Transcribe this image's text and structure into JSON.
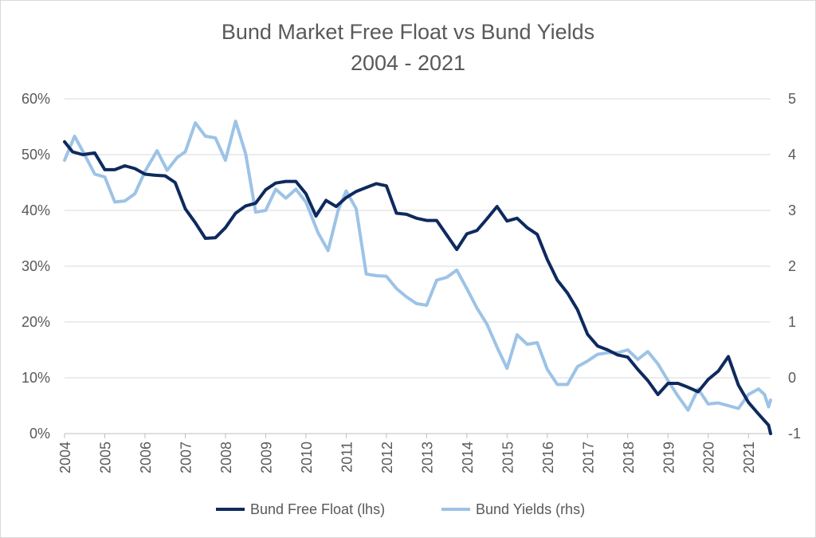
{
  "chart_data": {
    "type": "line",
    "title": "Bund Market Free Float vs Bund Yields",
    "subtitle": "2004 - 2021",
    "x_tick_labels": [
      "2004",
      "2005",
      "2006",
      "2007",
      "2008",
      "2009",
      "2010",
      "2011",
      "2012",
      "2013",
      "2014",
      "2015",
      "2016",
      "2017",
      "2018",
      "2019",
      "2020",
      "2021"
    ],
    "y_left": {
      "range": [
        0,
        60
      ],
      "ticks": [
        "0%",
        "10%",
        "20%",
        "30%",
        "40%",
        "50%",
        "60%"
      ],
      "tick_values": [
        0,
        10,
        20,
        30,
        40,
        50,
        60
      ]
    },
    "y_right": {
      "range": [
        -1,
        5
      ],
      "ticks": [
        "-1",
        "0",
        "1",
        "2",
        "3",
        "4",
        "5"
      ],
      "tick_values": [
        -1,
        0,
        1,
        2,
        3,
        4,
        5
      ]
    },
    "grid": "horizontal",
    "legend_position": "bottom",
    "series": [
      {
        "name": "Bund Free Float (lhs)",
        "axis": "left",
        "color": "#0e2a5e",
        "x": [
          2004.0,
          2004.2,
          2004.45,
          2004.75,
          2005.0,
          2005.25,
          2005.5,
          2005.75,
          2006.0,
          2006.25,
          2006.5,
          2006.75,
          2007.0,
          2007.25,
          2007.5,
          2007.75,
          2008.0,
          2008.25,
          2008.5,
          2008.75,
          2009.0,
          2009.25,
          2009.5,
          2009.75,
          2010.0,
          2010.25,
          2010.5,
          2010.75,
          2011.0,
          2011.25,
          2011.5,
          2011.75,
          2012.0,
          2012.25,
          2012.5,
          2012.75,
          2013.0,
          2013.25,
          2013.5,
          2013.75,
          2014.0,
          2014.25,
          2014.5,
          2014.75,
          2015.0,
          2015.25,
          2015.5,
          2015.75,
          2016.0,
          2016.25,
          2016.5,
          2016.75,
          2017.0,
          2017.25,
          2017.5,
          2017.75,
          2018.0,
          2018.25,
          2018.5,
          2018.75,
          2019.0,
          2019.25,
          2019.5,
          2019.75,
          2020.0,
          2020.25,
          2020.5,
          2020.75,
          2021.0,
          2021.25,
          2021.5,
          2021.55
        ],
        "values": [
          52.3,
          50.5,
          50.0,
          50.3,
          47.3,
          47.3,
          48.0,
          47.5,
          46.5,
          46.3,
          46.2,
          45.0,
          40.3,
          37.8,
          35.0,
          35.1,
          36.9,
          39.5,
          40.8,
          41.3,
          43.7,
          44.9,
          45.2,
          45.2,
          43.0,
          39.0,
          41.8,
          40.7,
          42.3,
          43.4,
          44.1,
          44.8,
          44.4,
          39.5,
          39.3,
          38.6,
          38.2,
          38.2,
          35.6,
          33.0,
          35.8,
          36.4,
          38.5,
          40.7,
          38.1,
          38.6,
          36.9,
          35.7,
          31.2,
          27.5,
          25.2,
          22.2,
          17.8,
          15.7,
          15.0,
          14.1,
          13.7,
          11.5,
          9.5,
          7.0,
          9.0,
          9.0,
          8.3,
          7.5,
          9.7,
          11.2,
          13.8,
          8.7,
          5.6,
          3.5,
          1.5,
          0.0
        ]
      },
      {
        "name": "Bund Yields (rhs)",
        "axis": "right",
        "color": "#9dc3e6",
        "x": [
          2004.0,
          2004.25,
          2004.5,
          2004.75,
          2005.0,
          2005.25,
          2005.5,
          2005.75,
          2006.0,
          2006.3,
          2006.55,
          2006.8,
          2007.0,
          2007.25,
          2007.5,
          2007.75,
          2008.0,
          2008.25,
          2008.5,
          2008.75,
          2009.0,
          2009.25,
          2009.5,
          2009.75,
          2010.0,
          2010.3,
          2010.55,
          2010.8,
          2011.0,
          2011.25,
          2011.5,
          2011.75,
          2012.0,
          2012.25,
          2012.5,
          2012.75,
          2013.0,
          2013.25,
          2013.5,
          2013.75,
          2014.0,
          2014.25,
          2014.5,
          2014.75,
          2015.0,
          2015.25,
          2015.5,
          2015.75,
          2016.0,
          2016.25,
          2016.5,
          2016.75,
          2017.0,
          2017.25,
          2017.5,
          2017.75,
          2018.0,
          2018.25,
          2018.5,
          2018.75,
          2019.0,
          2019.25,
          2019.5,
          2019.75,
          2020.0,
          2020.25,
          2020.5,
          2020.75,
          2021.0,
          2021.25,
          2021.4,
          2021.5,
          2021.55
        ],
        "values": [
          3.9,
          4.33,
          4.0,
          3.65,
          3.6,
          3.15,
          3.17,
          3.3,
          3.7,
          4.07,
          3.72,
          3.95,
          4.05,
          4.57,
          4.33,
          4.3,
          3.9,
          4.6,
          4.02,
          2.97,
          3.0,
          3.38,
          3.22,
          3.38,
          3.15,
          2.6,
          2.28,
          3.0,
          3.35,
          3.03,
          1.86,
          1.83,
          1.82,
          1.6,
          1.45,
          1.33,
          1.3,
          1.75,
          1.8,
          1.93,
          1.6,
          1.25,
          0.96,
          0.55,
          0.17,
          0.77,
          0.6,
          0.63,
          0.15,
          -0.12,
          -0.12,
          0.2,
          0.3,
          0.42,
          0.45,
          0.45,
          0.5,
          0.33,
          0.47,
          0.25,
          -0.05,
          -0.33,
          -0.58,
          -0.2,
          -0.47,
          -0.45,
          -0.5,
          -0.55,
          -0.3,
          -0.2,
          -0.3,
          -0.52,
          -0.4
        ]
      }
    ]
  }
}
